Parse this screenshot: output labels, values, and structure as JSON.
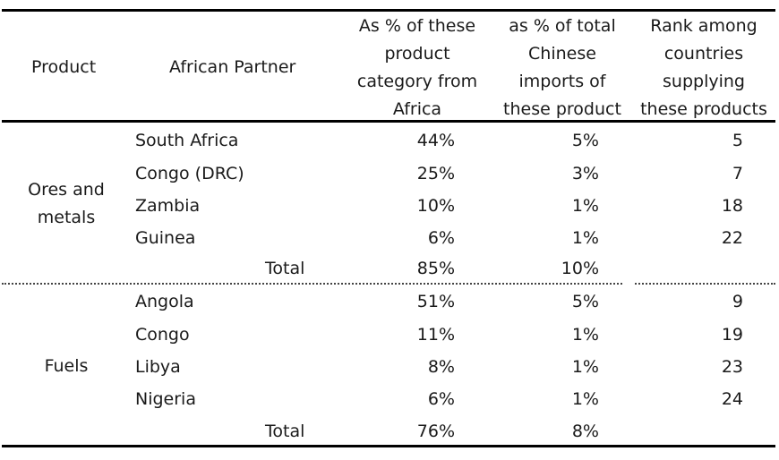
{
  "table": {
    "headers": {
      "product": "Product",
      "partner": "African Partner",
      "pct_africa": [
        "As % of these",
        "product",
        "category from",
        "Africa"
      ],
      "pct_china": [
        "as % of total",
        "Chinese",
        "imports of",
        "these product"
      ],
      "rank": [
        "Rank among",
        "countries",
        "supplying",
        "these products"
      ]
    },
    "groups": [
      {
        "product_lines": [
          "Ores and",
          "metals"
        ],
        "rows": [
          {
            "partner": "South Africa",
            "pct_africa": "44%",
            "pct_china": "5%",
            "rank": "5"
          },
          {
            "partner": "Congo (DRC)",
            "pct_africa": "25%",
            "pct_china": "3%",
            "rank": "7"
          },
          {
            "partner": "Zambia",
            "pct_africa": "10%",
            "pct_china": "1%",
            "rank": "18"
          },
          {
            "partner": "Guinea",
            "pct_africa": "6%",
            "pct_china": "1%",
            "rank": "22"
          }
        ],
        "total": {
          "label": "Total",
          "pct_africa": "85%",
          "pct_china": "10%"
        }
      },
      {
        "product_lines": [
          "Fuels"
        ],
        "rows": [
          {
            "partner": "Angola",
            "pct_africa": "51%",
            "pct_china": "5%",
            "rank": "9"
          },
          {
            "partner": "Congo",
            "pct_africa": "11%",
            "pct_china": "1%",
            "rank": "19"
          },
          {
            "partner": "Libya",
            "pct_africa": "8%",
            "pct_china": "1%",
            "rank": "23"
          },
          {
            "partner": "Nigeria",
            "pct_africa": "6%",
            "pct_china": "1%",
            "rank": "24"
          }
        ],
        "total": {
          "label": "Total",
          "pct_africa": "76%",
          "pct_china": "8%"
        }
      }
    ]
  }
}
